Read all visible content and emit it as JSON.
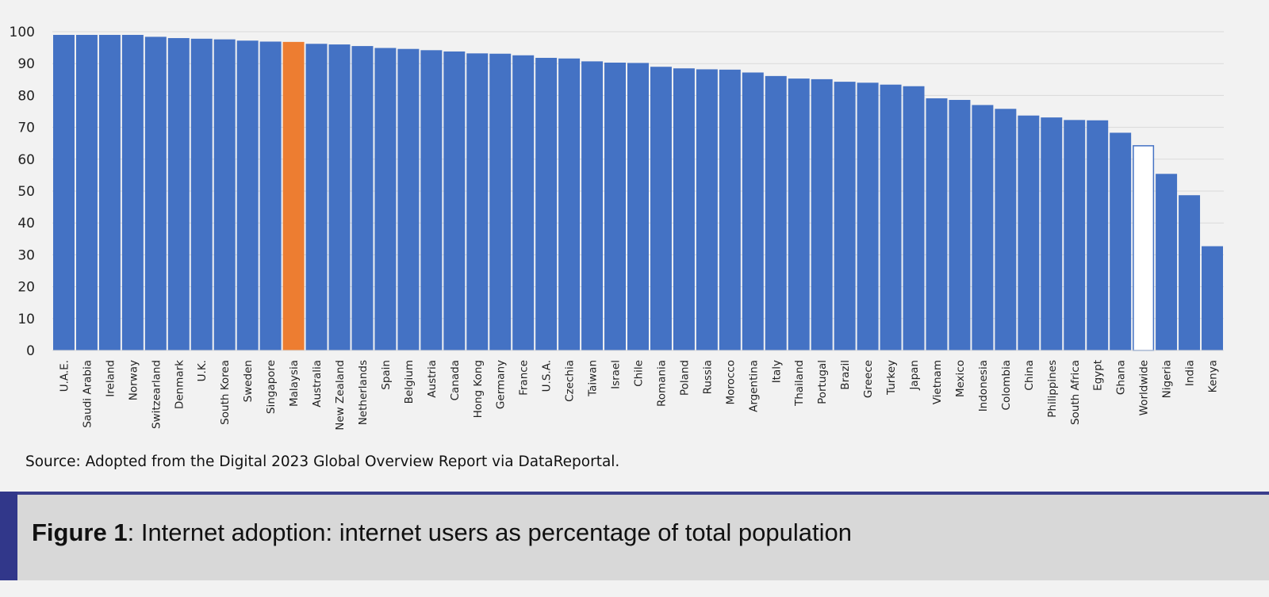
{
  "chart_data": {
    "type": "bar",
    "title": "Internet adoption: internet users as percentage of total population",
    "xlabel": "",
    "ylabel": "",
    "ylim": [
      0,
      100
    ],
    "yticks": [
      "0",
      "10",
      "20",
      "30",
      "40",
      "50",
      "60",
      "70",
      "80",
      "90",
      "100"
    ],
    "grid": true,
    "categories": [
      "U.A.E.",
      "Saudi Arabia",
      "Ireland",
      "Norway",
      "Switzearland",
      "Denmark",
      "U.K.",
      "South Korea",
      "Sweden",
      "Singapore",
      "Malaysia",
      "Australia",
      "New Zealand",
      "Netherlands",
      "Spain",
      "Belgium",
      "Austria",
      "Canada",
      "Hong Kong",
      "Germany",
      "France",
      "U.S.A.",
      "Czechia",
      "Taiwan",
      "Israel",
      "Chile",
      "Romania",
      "Poland",
      "Russia",
      "Morocco",
      "Argentina",
      "Italy",
      "Thailand",
      "Portugal",
      "Brazil",
      "Greece",
      "Turkey",
      "Japan",
      "Vietnam",
      "Mexico",
      "Indonesia",
      "Colombia",
      "China",
      "Philippines",
      "South Africa",
      "Egypt",
      "Ghana",
      "Worldwide",
      "Nigeria",
      "India",
      "Kenya"
    ],
    "values": [
      99.0,
      99.0,
      99.0,
      99.0,
      98.4,
      98.0,
      97.8,
      97.6,
      97.2,
      96.9,
      96.8,
      96.2,
      96.0,
      95.5,
      94.9,
      94.6,
      94.2,
      93.8,
      93.2,
      93.1,
      92.6,
      91.8,
      91.6,
      90.7,
      90.3,
      90.2,
      89.0,
      88.5,
      88.2,
      88.1,
      87.2,
      86.1,
      85.3,
      85.1,
      84.3,
      84.0,
      83.4,
      82.9,
      79.1,
      78.6,
      77.0,
      75.8,
      73.7,
      73.1,
      72.3,
      72.2,
      68.3,
      64.4,
      55.4,
      48.7,
      32.7
    ],
    "highlight": {
      "Malaysia": "#ed7d31",
      "Worldwide": "#ffffff"
    },
    "colors": {
      "default": "#4472c4",
      "highlight": "#ed7d31",
      "outline": "#4472c4"
    }
  },
  "source_note": "Source: Adopted from the Digital 2023 Global Overview Report via DataReportal.",
  "caption": {
    "label": "Figure 1",
    "separator": ":",
    "text": " Internet adoption: internet users as percentage of total population"
  }
}
